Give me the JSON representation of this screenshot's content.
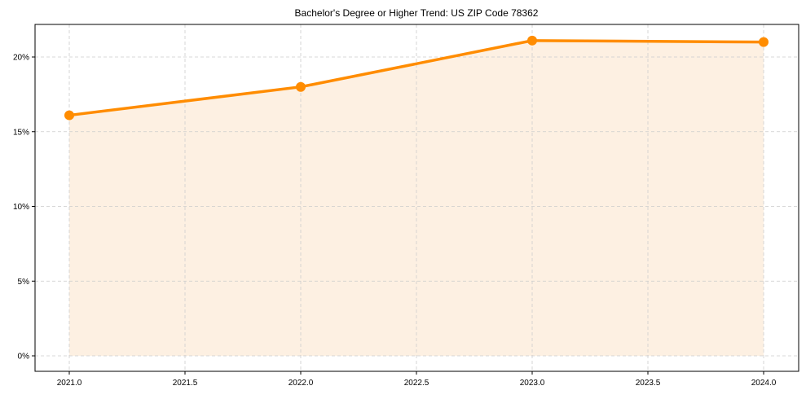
{
  "chart_data": {
    "type": "line",
    "title": "Bachelor's Degree or Higher Trend: US ZIP Code 78362",
    "xlabel": "",
    "ylabel": "",
    "x": [
      2021,
      2022,
      2023,
      2024
    ],
    "series": [
      {
        "name": "Bachelor's Degree or Higher",
        "values": [
          16.1,
          18.0,
          21.1,
          21.0
        ],
        "color": "#ff8c00",
        "fill": "#fdf0e2"
      }
    ],
    "xticks": [
      "2021.0",
      "2021.5",
      "2022.0",
      "2022.5",
      "2023.0",
      "2023.5",
      "2024.0"
    ],
    "xtick_values": [
      2021.0,
      2021.5,
      2022.0,
      2022.5,
      2023.0,
      2023.5,
      2024.0
    ],
    "yticks": [
      "0%",
      "5%",
      "10%",
      "15%",
      "20%"
    ],
    "ytick_values": [
      0,
      5,
      10,
      15,
      20
    ],
    "xlim": [
      2020.71,
      2024.3
    ],
    "ylim": [
      -1.05,
      22.2
    ],
    "grid": true,
    "legend": null
  }
}
